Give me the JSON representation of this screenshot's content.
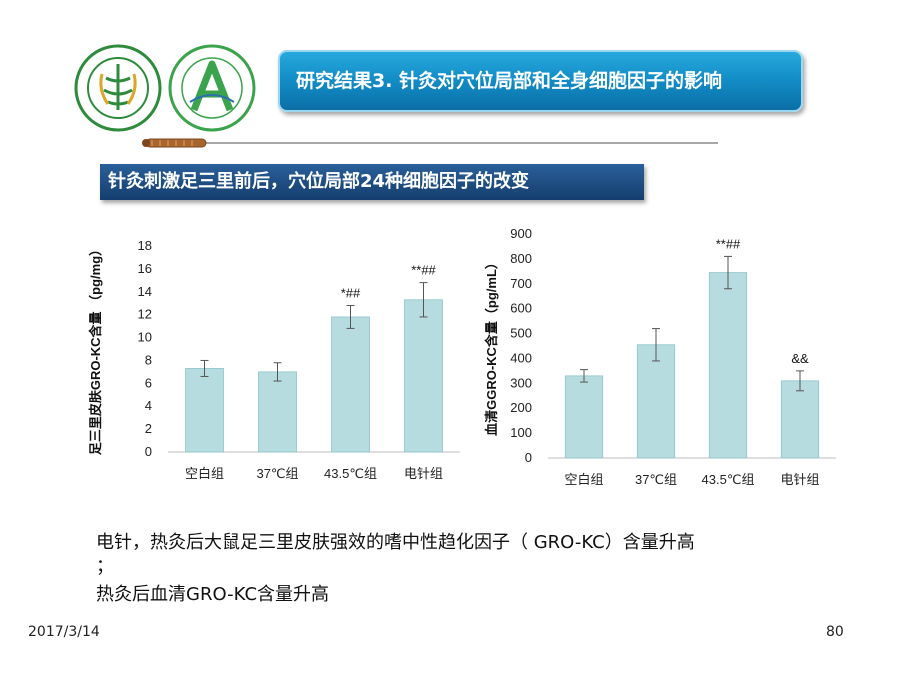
{
  "slide": {
    "title": "研究结果3. 针灸对穴位局部和全身细胞因子的影响",
    "subtitle": "针灸刺激足三里前后，穴位局部24种细胞因子的改变",
    "caption_line1": "电针，热灸后大鼠足三里皮肤强效的嗜中性趋化因子（ GRO-KC）含量升高",
    "caption_line2": "；",
    "caption_line3": "热灸后血清GRO-KC含量升高",
    "date": "2017/3/14",
    "page_number": "80"
  },
  "colors": {
    "bar_fill": "#b7dce0",
    "bar_stroke": "#8cc4ca",
    "title_bg": "#1a96d0",
    "subhead_bg": "#1d4d84"
  },
  "chart_data": [
    {
      "type": "bar",
      "title": "",
      "ylabel": "足三里皮肤GRO-KC含量 （pg/mg）",
      "xlabel": "",
      "categories": [
        "空白组",
        "37℃组",
        "43.5℃组",
        "电针组"
      ],
      "values": [
        7.3,
        7.0,
        11.8,
        13.3
      ],
      "errors": [
        0.7,
        0.8,
        1.0,
        1.5
      ],
      "annotations": [
        "",
        "",
        "*##",
        "**##"
      ],
      "ylim": [
        0,
        18
      ],
      "yticks": [
        "0",
        "2",
        "4",
        "6",
        "8",
        "10",
        "12",
        "14",
        "16",
        "18"
      ],
      "grid": false
    },
    {
      "type": "bar",
      "title": "",
      "ylabel": "血清GGRO-KC含量（pg/mL）",
      "xlabel": "",
      "categories": [
        "空白组",
        "37℃组",
        "43.5℃组",
        "电针组"
      ],
      "values": [
        330,
        455,
        745,
        310
      ],
      "errors": [
        25,
        65,
        65,
        40
      ],
      "annotations": [
        "",
        "",
        "**##",
        "&&"
      ],
      "ylim": [
        0,
        900
      ],
      "yticks": [
        "0",
        "100",
        "200",
        "300",
        "400",
        "500",
        "600",
        "700",
        "800",
        "900"
      ],
      "grid": false
    }
  ]
}
